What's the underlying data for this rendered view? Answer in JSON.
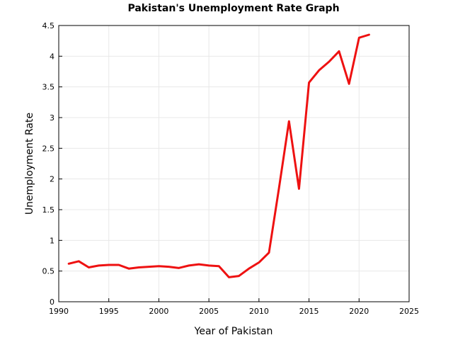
{
  "chart_data": {
    "type": "line",
    "title": "Pakistan's Unemployment Rate Graph",
    "xlabel": "Year of Pakistan",
    "ylabel": "Unemployment Rate",
    "xlim": [
      1990,
      2025
    ],
    "ylim": [
      0,
      4.5
    ],
    "xticks": [
      1990,
      1995,
      2000,
      2005,
      2010,
      2015,
      2020,
      2025
    ],
    "xtick_labels": [
      "1990",
      "1995",
      "2000",
      "2005",
      "2010",
      "2015",
      "2020",
      "2025"
    ],
    "yticks": [
      0,
      0.5,
      1,
      1.5,
      2,
      2.5,
      3,
      3.5,
      4,
      4.5
    ],
    "ytick_labels": [
      "0",
      "0.5",
      "1",
      "1.5",
      "2",
      "2.5",
      "3",
      "3.5",
      "4",
      "4.5"
    ],
    "grid": true,
    "series": [
      {
        "color": "#ee1111",
        "x": [
          1991,
          1992,
          1993,
          1994,
          1995,
          1996,
          1997,
          1998,
          1999,
          2000,
          2001,
          2002,
          2003,
          2004,
          2005,
          2006,
          2007,
          2008,
          2009,
          2010,
          2011,
          2012,
          2013,
          2014,
          2015,
          2016,
          2017,
          2018,
          2019,
          2020,
          2021
        ],
        "y": [
          0.62,
          0.66,
          0.56,
          0.59,
          0.6,
          0.6,
          0.54,
          0.56,
          0.57,
          0.58,
          0.57,
          0.55,
          0.59,
          0.61,
          0.59,
          0.58,
          0.4,
          0.42,
          0.54,
          0.64,
          0.8,
          1.85,
          2.94,
          1.84,
          3.57,
          3.77,
          3.91,
          4.08,
          3.55,
          4.3,
          4.35
        ]
      }
    ]
  }
}
